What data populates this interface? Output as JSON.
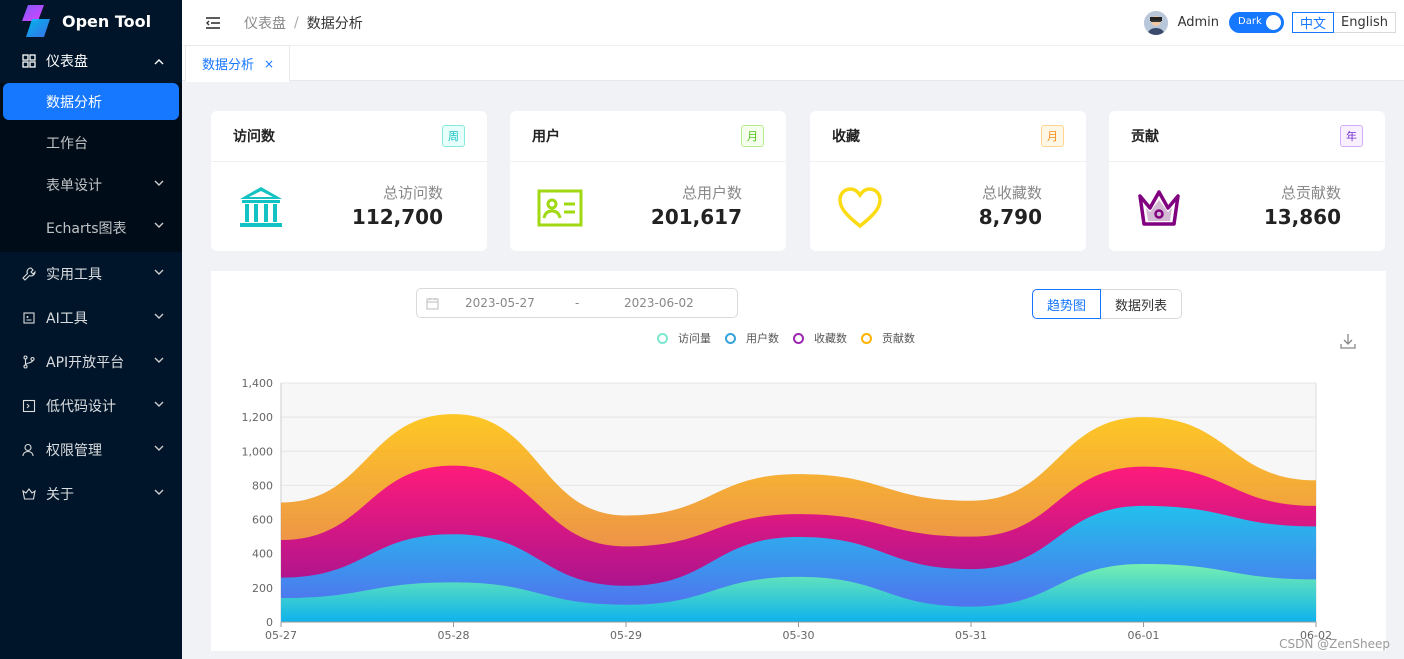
{
  "app": {
    "title": "Open Tool"
  },
  "sidebar": {
    "dashboard": {
      "label": "仪表盘"
    },
    "dashboard_items": [
      {
        "label": "数据分析",
        "active": true
      },
      {
        "label": "工作台"
      },
      {
        "label": "表单设计",
        "has_children": true
      },
      {
        "label": "Echarts图表",
        "has_children": true
      }
    ],
    "menus": [
      {
        "label": "实用工具",
        "icon": "wrench-icon"
      },
      {
        "label": "AI工具",
        "icon": "ai-icon"
      },
      {
        "label": "API开放平台",
        "icon": "branch-icon"
      },
      {
        "label": "低代码设计",
        "icon": "code-icon"
      },
      {
        "label": "权限管理",
        "icon": "user-icon"
      },
      {
        "label": "关于",
        "icon": "about-icon"
      }
    ]
  },
  "header": {
    "breadcrumb": [
      "仪表盘",
      "数据分析"
    ],
    "user": "Admin",
    "theme_toggle": "Dark",
    "languages": [
      "中文",
      "English"
    ],
    "active_language": "中文"
  },
  "tabs": [
    {
      "label": "数据分析",
      "close": "×"
    }
  ],
  "cards": [
    {
      "title": "访问数",
      "badge": "周",
      "badge_color": "#13c2c2",
      "label": "总访问数",
      "value": "112,700",
      "icon": "bank-icon",
      "icon_color": "#13c2c2"
    },
    {
      "title": "用户",
      "badge": "月",
      "badge_color": "#52c41a",
      "label": "总用户数",
      "value": "201,617",
      "icon": "id-card-icon",
      "icon_color": "#a0d911"
    },
    {
      "title": "收藏",
      "badge": "月",
      "badge_color": "#fa8c16",
      "label": "总收藏数",
      "value": "8,790",
      "icon": "heart-icon",
      "icon_color": "#fadb14"
    },
    {
      "title": "贡献",
      "badge": "年",
      "badge_color": "#722ed1",
      "label": "总贡献数",
      "value": "13,860",
      "icon": "crown-icon",
      "icon_color": "#800080"
    }
  ],
  "filters": {
    "start_date": "2023-05-27",
    "separator": "-",
    "end_date": "2023-06-02",
    "view_buttons": [
      "趋势图",
      "数据列表"
    ],
    "active_view": "趋势图"
  },
  "chart_data": {
    "type": "area",
    "stacked": true,
    "smooth": true,
    "x": [
      "05-27",
      "05-28",
      "05-29",
      "05-30",
      "05-31",
      "06-01",
      "06-02"
    ],
    "ylim": [
      0,
      1400
    ],
    "yticks": [
      "0",
      "200",
      "400",
      "600",
      "800",
      "1,000",
      "1,200",
      "1,400"
    ],
    "series": [
      {
        "name": "访问量",
        "color": "#80FFA5",
        "values": [
          140,
          232,
          101,
          264,
          90,
          340,
          250
        ]
      },
      {
        "name": "用户数",
        "color": "#00DDFF",
        "values": [
          120,
          282,
          111,
          234,
          220,
          340,
          310
        ]
      },
      {
        "name": "收藏数",
        "color": "#b54ad6",
        "values": [
          220,
          402,
          231,
          134,
          190,
          230,
          120
        ]
      },
      {
        "name": "贡献数",
        "color": "#FFBF00",
        "values": [
          220,
          302,
          181,
          234,
          210,
          290,
          150
        ]
      }
    ],
    "legend_position": "top-center",
    "grid": true
  },
  "watermark": "CSDN @ZenSheep"
}
